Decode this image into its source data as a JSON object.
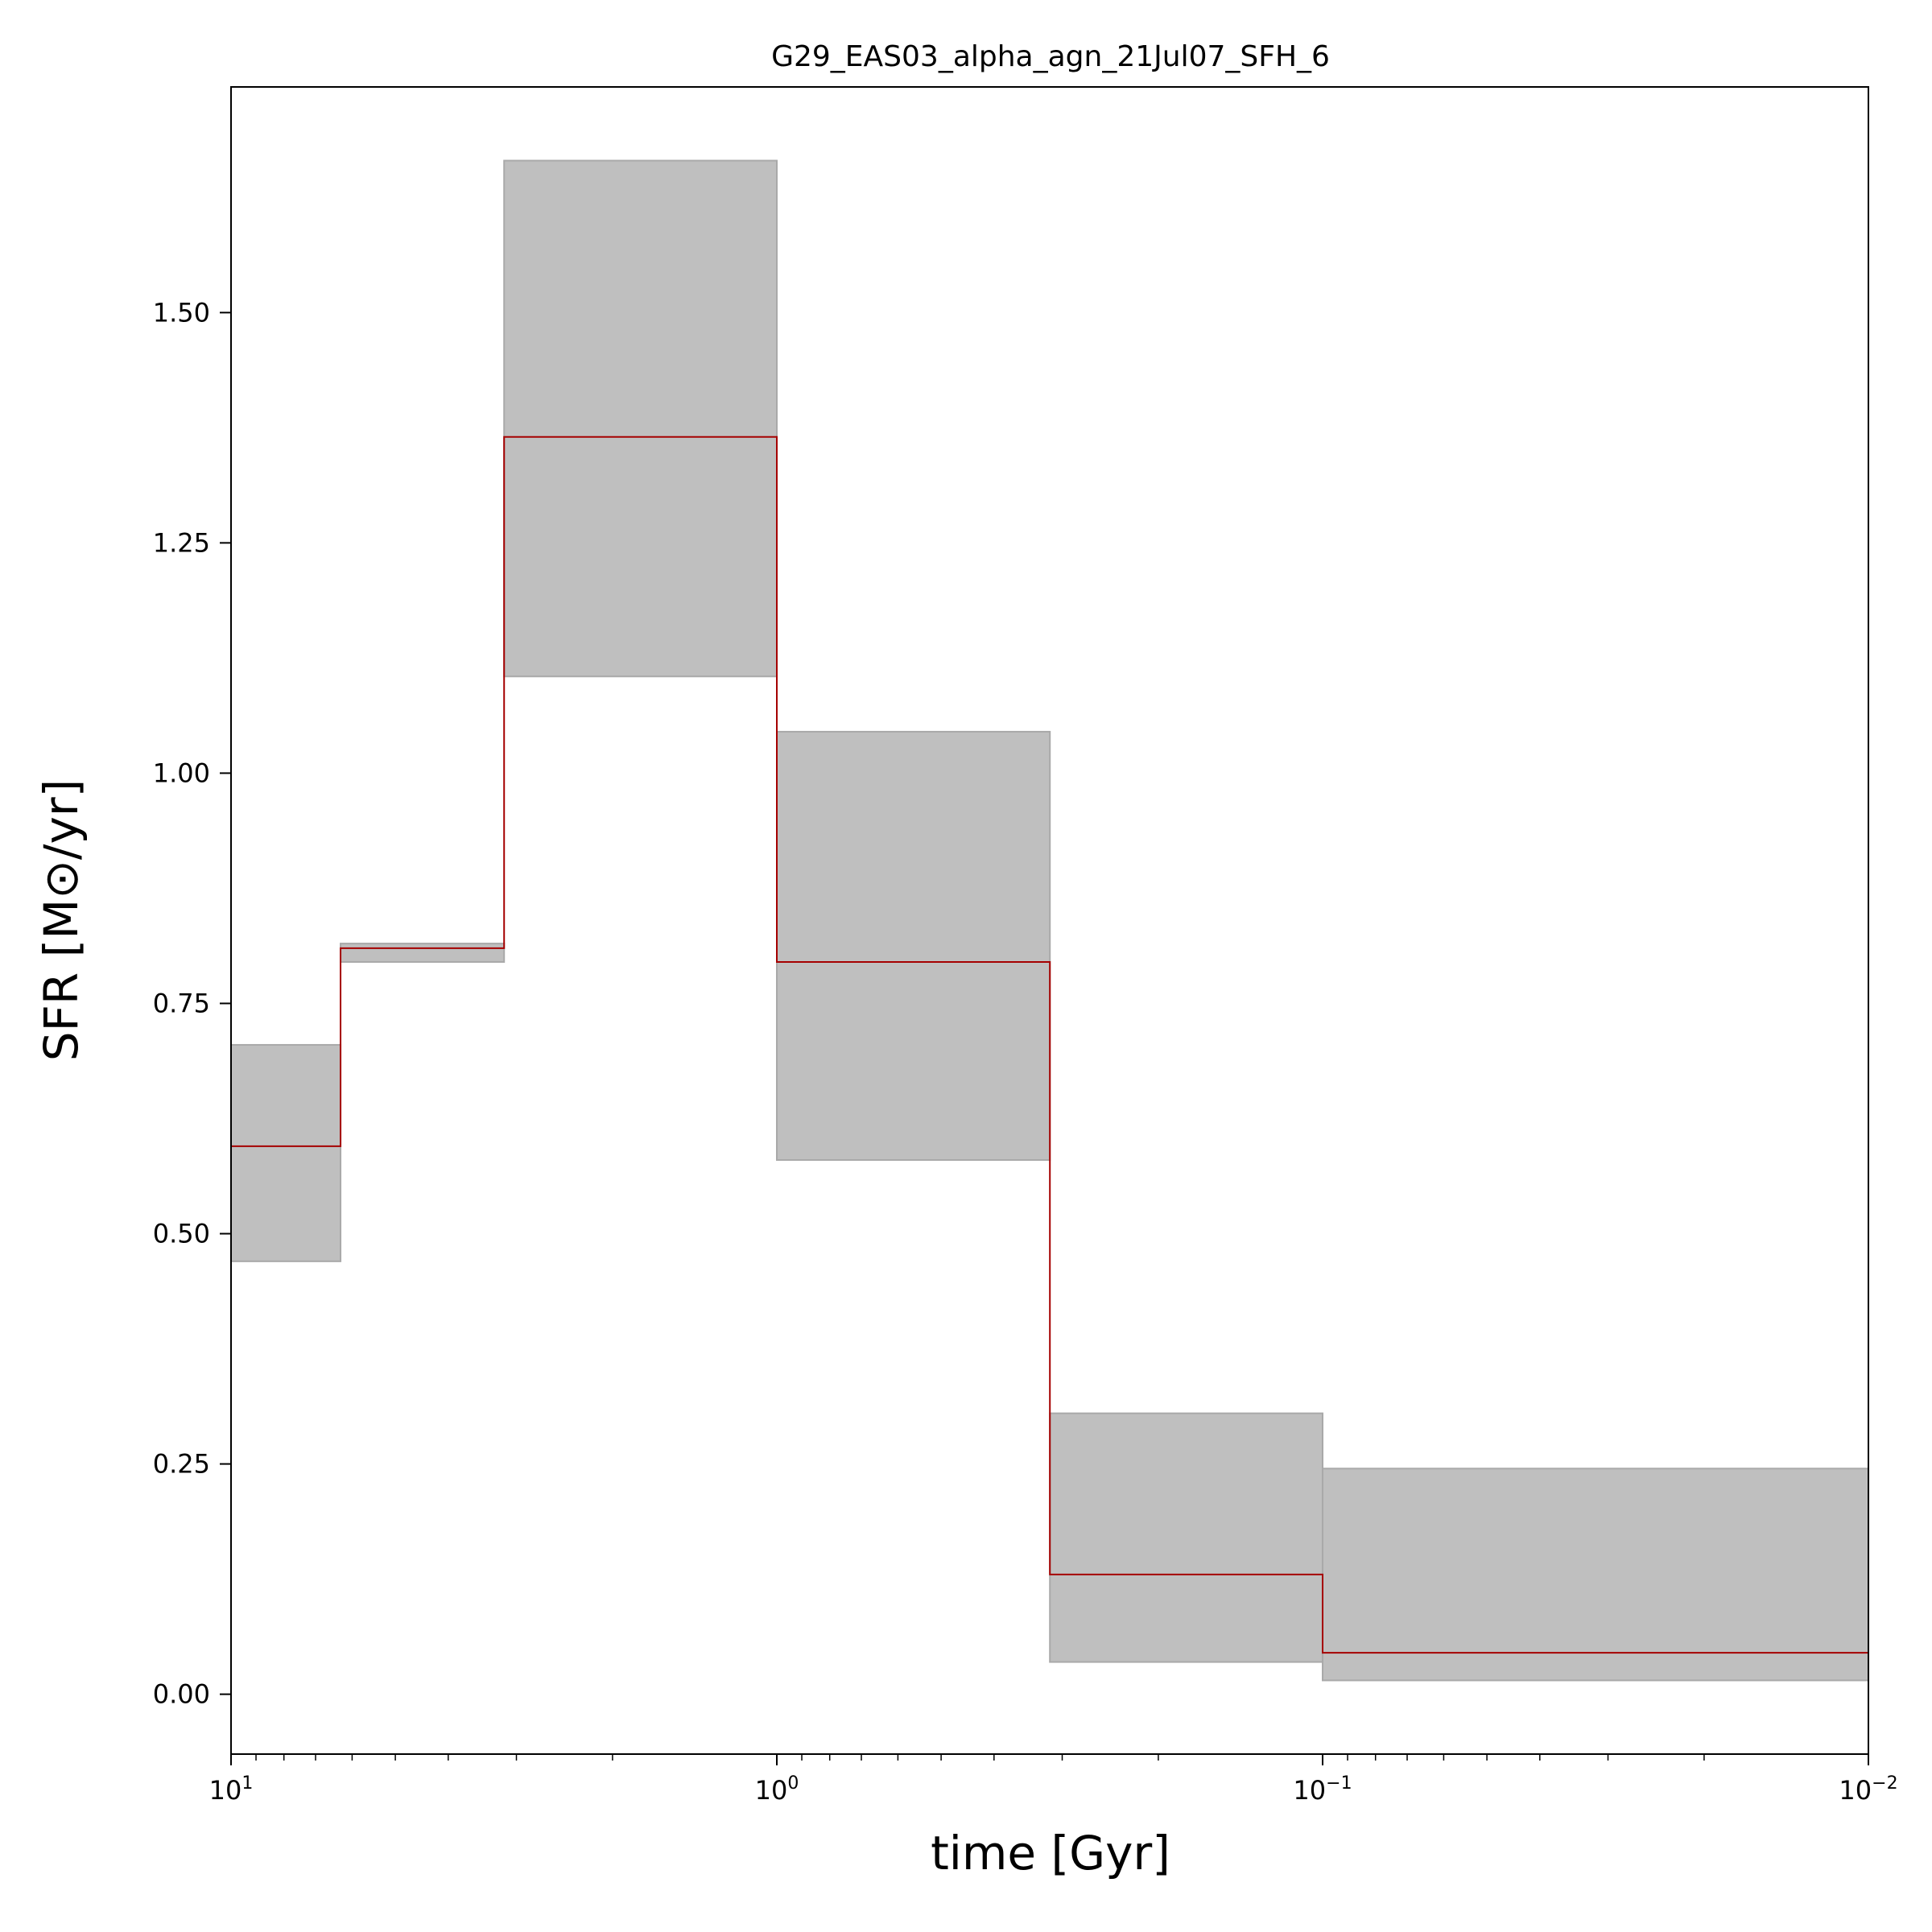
{
  "chart_data": {
    "type": "line",
    "title": "G29_EAS03_alpha_agn_21Jul07_SFH_6",
    "xlabel": "time [Gyr]",
    "ylabel": "SFR [M⊙/yr]",
    "xscale": "log",
    "xaxis_reversed": true,
    "xlim": [
      10,
      0.01
    ],
    "ylim": [
      -0.065,
      1.745
    ],
    "grid": false,
    "yticks": [
      {
        "value": 0.0,
        "label": "0.00"
      },
      {
        "value": 0.25,
        "label": "0.25"
      },
      {
        "value": 0.5,
        "label": "0.50"
      },
      {
        "value": 0.75,
        "label": "0.75"
      },
      {
        "value": 1.0,
        "label": "1.00"
      },
      {
        "value": 1.25,
        "label": "1.25"
      },
      {
        "value": 1.5,
        "label": "1.50"
      }
    ],
    "xticks": [
      {
        "value": 10,
        "base": "10",
        "exp": "1"
      },
      {
        "value": 1,
        "base": "10",
        "exp": "0"
      },
      {
        "value": 0.1,
        "base": "10",
        "exp": "−1"
      },
      {
        "value": 0.01,
        "base": "10",
        "exp": "−2"
      }
    ],
    "bins": [
      {
        "t_start": 10.0,
        "t_end": 6.3,
        "sfr": 0.595,
        "low": 0.47,
        "high": 0.705
      },
      {
        "t_start": 6.3,
        "t_end": 3.16,
        "sfr": 0.81,
        "low": 0.795,
        "high": 0.815
      },
      {
        "t_start": 3.16,
        "t_end": 1.0,
        "sfr": 1.365,
        "low": 1.105,
        "high": 1.665
      },
      {
        "t_start": 1.0,
        "t_end": 0.316,
        "sfr": 0.795,
        "low": 0.58,
        "high": 1.045
      },
      {
        "t_start": 0.316,
        "t_end": 0.1,
        "sfr": 0.13,
        "low": 0.035,
        "high": 0.305
      },
      {
        "t_start": 0.1,
        "t_end": 0.01,
        "sfr": 0.045,
        "low": 0.015,
        "high": 0.245
      }
    ],
    "colors": {
      "median_line": "#a50000",
      "band_fill": "#bfbfbf",
      "band_edge": "#a9a9a9"
    }
  }
}
